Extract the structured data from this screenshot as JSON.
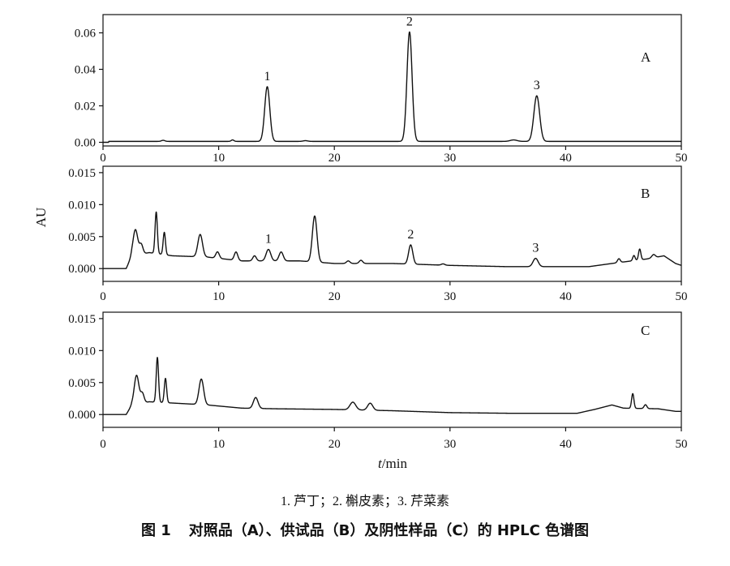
{
  "chart_data": [
    {
      "type": "line",
      "panel": "A",
      "xlabel_italic": "t",
      "xlabel_rest": "/min",
      "ylabel": "",
      "xlim": [
        0,
        50
      ],
      "ylim": [
        -0.002,
        0.07
      ],
      "x_ticks": [
        0,
        10,
        20,
        30,
        40,
        50
      ],
      "y_ticks": [
        0.0,
        0.02,
        0.04,
        0.06
      ],
      "y_tick_labels": [
        "0.00",
        "0.02",
        "0.04",
        "0.06"
      ],
      "baseline": 0.0005,
      "peaks": [
        {
          "label": "1",
          "x": 14.2,
          "height": 0.03,
          "width": 0.22
        },
        {
          "label": "2",
          "x": 26.5,
          "height": 0.06,
          "width": 0.22
        },
        {
          "label": "3",
          "x": 37.5,
          "height": 0.025,
          "width": 0.25
        }
      ],
      "minor_peaks": [
        {
          "x": 5.2,
          "height": 0.0006,
          "width": 0.15
        },
        {
          "x": 11.2,
          "height": 0.0008,
          "width": 0.12
        },
        {
          "x": 17.5,
          "height": 0.0004,
          "width": 0.2
        },
        {
          "x": 35.5,
          "height": 0.0008,
          "width": 0.3
        }
      ]
    },
    {
      "type": "line",
      "panel": "B",
      "ylabel": "AU",
      "xlim": [
        0,
        50
      ],
      "ylim": [
        -0.002,
        0.016
      ],
      "x_ticks": [
        0,
        10,
        20,
        30,
        40,
        50
      ],
      "y_ticks": [
        0.0,
        0.005,
        0.01,
        0.015
      ],
      "y_tick_labels": [
        "0.000",
        "0.005",
        "0.010",
        "0.015"
      ],
      "baseline_points": [
        [
          0,
          0.0
        ],
        [
          2.0,
          0.0
        ],
        [
          2.5,
          0.002
        ],
        [
          4,
          0.0025
        ],
        [
          6,
          0.002
        ],
        [
          9,
          0.0018
        ],
        [
          12,
          0.0012
        ],
        [
          17,
          0.0012
        ],
        [
          20,
          0.0008
        ],
        [
          25,
          0.0008
        ],
        [
          30,
          0.0005
        ],
        [
          35,
          0.0003
        ],
        [
          42,
          0.0003
        ],
        [
          44,
          0.0008
        ],
        [
          47,
          0.0015
        ],
        [
          48.5,
          0.002
        ],
        [
          49.5,
          0.0008
        ],
        [
          50,
          0.0005
        ]
      ],
      "peaks": [
        {
          "label": "",
          "x": 2.8,
          "height": 0.004,
          "width": 0.2
        },
        {
          "label": "",
          "x": 3.3,
          "height": 0.0015,
          "width": 0.15
        },
        {
          "label": "",
          "x": 4.6,
          "height": 0.0065,
          "width": 0.1
        },
        {
          "label": "",
          "x": 5.3,
          "height": 0.0035,
          "width": 0.1
        },
        {
          "label": "",
          "x": 8.4,
          "height": 0.0035,
          "width": 0.2
        },
        {
          "label": "",
          "x": 9.9,
          "height": 0.001,
          "width": 0.15
        },
        {
          "label": "",
          "x": 11.5,
          "height": 0.0013,
          "width": 0.15
        },
        {
          "label": "",
          "x": 13.1,
          "height": 0.0008,
          "width": 0.15
        },
        {
          "label": "1",
          "x": 14.3,
          "height": 0.0018,
          "width": 0.2
        },
        {
          "label": "",
          "x": 15.4,
          "height": 0.0014,
          "width": 0.18
        },
        {
          "label": "",
          "x": 18.3,
          "height": 0.0072,
          "width": 0.2
        },
        {
          "label": "",
          "x": 21.2,
          "height": 0.0004,
          "width": 0.15
        },
        {
          "label": "",
          "x": 22.3,
          "height": 0.0005,
          "width": 0.15
        },
        {
          "label": "2",
          "x": 26.6,
          "height": 0.003,
          "width": 0.18
        },
        {
          "label": "",
          "x": 29.4,
          "height": 0.0002,
          "width": 0.15
        },
        {
          "label": "3",
          "x": 37.4,
          "height": 0.0013,
          "width": 0.22
        },
        {
          "label": "",
          "x": 44.6,
          "height": 0.0006,
          "width": 0.12
        },
        {
          "label": "",
          "x": 45.9,
          "height": 0.0008,
          "width": 0.1
        },
        {
          "label": "",
          "x": 46.4,
          "height": 0.0017,
          "width": 0.1
        },
        {
          "label": "",
          "x": 47.6,
          "height": 0.0005,
          "width": 0.15
        }
      ]
    },
    {
      "type": "line",
      "panel": "C",
      "ylabel": "",
      "xlim": [
        0,
        50
      ],
      "ylim": [
        -0.002,
        0.016
      ],
      "x_ticks": [
        0,
        10,
        20,
        30,
        40,
        50
      ],
      "y_ticks": [
        0.0,
        0.005,
        0.01,
        0.015
      ],
      "y_tick_labels": [
        "0.000",
        "0.005",
        "0.010",
        "0.015"
      ],
      "baseline_points": [
        [
          0,
          0.0
        ],
        [
          2.0,
          0.0
        ],
        [
          2.5,
          0.0015
        ],
        [
          4,
          0.002
        ],
        [
          6,
          0.0018
        ],
        [
          9,
          0.0015
        ],
        [
          12,
          0.001
        ],
        [
          15,
          0.0009
        ],
        [
          20,
          0.0008
        ],
        [
          25,
          0.0006
        ],
        [
          30,
          0.0003
        ],
        [
          35,
          0.0002
        ],
        [
          41,
          0.0002
        ],
        [
          42.5,
          0.0008
        ],
        [
          44,
          0.0015
        ],
        [
          45,
          0.001
        ],
        [
          48,
          0.0009
        ],
        [
          49.5,
          0.0005
        ],
        [
          50,
          0.0005
        ]
      ],
      "peaks": [
        {
          "label": "",
          "x": 2.9,
          "height": 0.0045,
          "width": 0.2
        },
        {
          "label": "",
          "x": 3.4,
          "height": 0.0015,
          "width": 0.15
        },
        {
          "label": "",
          "x": 4.7,
          "height": 0.007,
          "width": 0.1
        },
        {
          "label": "",
          "x": 5.4,
          "height": 0.0038,
          "width": 0.1
        },
        {
          "label": "",
          "x": 8.5,
          "height": 0.004,
          "width": 0.2
        },
        {
          "label": "",
          "x": 13.2,
          "height": 0.0017,
          "width": 0.2
        },
        {
          "label": "",
          "x": 21.6,
          "height": 0.0012,
          "width": 0.25
        },
        {
          "label": "",
          "x": 23.1,
          "height": 0.0011,
          "width": 0.22
        },
        {
          "label": "",
          "x": 45.8,
          "height": 0.0023,
          "width": 0.1
        },
        {
          "label": "",
          "x": 46.9,
          "height": 0.0006,
          "width": 0.12
        }
      ]
    }
  ],
  "legend_text": "1. 芦丁；2. 槲皮素；3. 芹菜素",
  "caption": {
    "label": "图 1",
    "text": "对照品（A）、供试品（B）及阴性样品（C）的 HPLC 色谱图"
  }
}
